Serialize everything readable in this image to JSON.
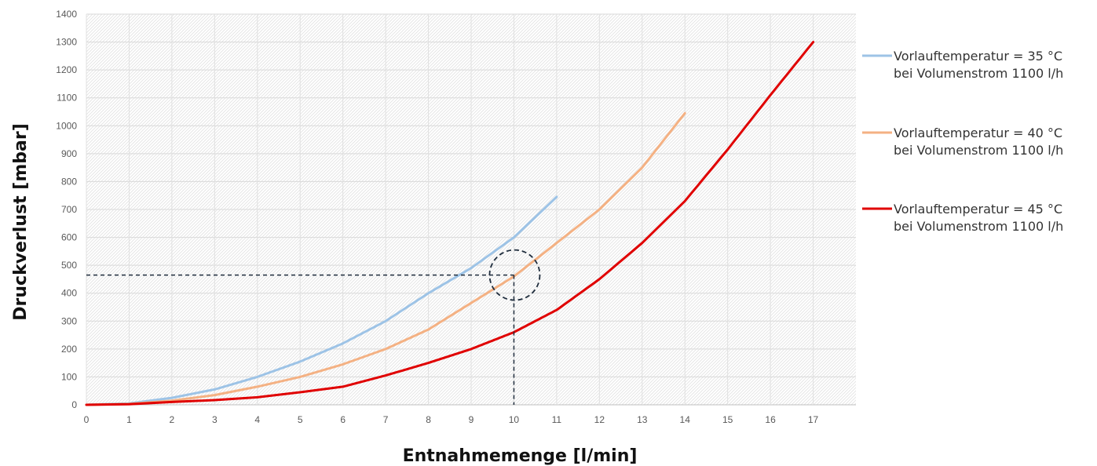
{
  "chart_data": {
    "type": "line",
    "xlabel": "Entnahmemenge [l/min]",
    "ylabel": "Druckverlust [mbar]",
    "xlim": [
      0,
      18
    ],
    "ylim": [
      0,
      1400
    ],
    "x_ticks": [
      "0",
      "1",
      "2",
      "3",
      "4",
      "5",
      "6",
      "7",
      "8",
      "9",
      "10",
      "11",
      "12",
      "13",
      "14",
      "15",
      "16",
      "17"
    ],
    "y_ticks": [
      "0",
      "100",
      "200",
      "300",
      "400",
      "500",
      "600",
      "700",
      "800",
      "900",
      "1000",
      "1100",
      "1200",
      "1300",
      "1400"
    ],
    "grid": true,
    "legend_position": "right",
    "series": [
      {
        "name_line1": "Vorlauftemperatur = 35 °C",
        "name_line2": "bei Volumenstrom 1100 l/h",
        "color": "#9dc3e6",
        "x": [
          0,
          1,
          2,
          3,
          4,
          5,
          6,
          7,
          8,
          9,
          10,
          11
        ],
        "y": [
          0,
          5,
          25,
          55,
          100,
          155,
          220,
          300,
          400,
          490,
          600,
          745
        ]
      },
      {
        "name_line1": "Vorlauftemperatur = 40 °C",
        "name_line2": "bei Volumenstrom 1100 l/h",
        "color": "#f4b183",
        "x": [
          0,
          1,
          2,
          3,
          4,
          5,
          6,
          7,
          8,
          9,
          10,
          11,
          12,
          13,
          14
        ],
        "y": [
          0,
          3,
          15,
          35,
          65,
          100,
          145,
          200,
          270,
          365,
          460,
          580,
          700,
          850,
          1045
        ]
      },
      {
        "name_line1": "Vorlauftemperatur = 45 °C",
        "name_line2": "bei Volumenstrom 1100 l/h",
        "color": "#e00000",
        "x": [
          0,
          1,
          2,
          3,
          4,
          5,
          6,
          7,
          8,
          9,
          10,
          11,
          12,
          13,
          14,
          15,
          16,
          17
        ],
        "y": [
          0,
          2,
          10,
          17,
          27,
          45,
          65,
          105,
          150,
          200,
          260,
          340,
          450,
          580,
          730,
          915,
          1110,
          1300
        ]
      }
    ],
    "annotation": {
      "x": 10,
      "y": 465,
      "style": "dashed reference lines with dashed circle",
      "color": "#1f2d3d"
    }
  }
}
